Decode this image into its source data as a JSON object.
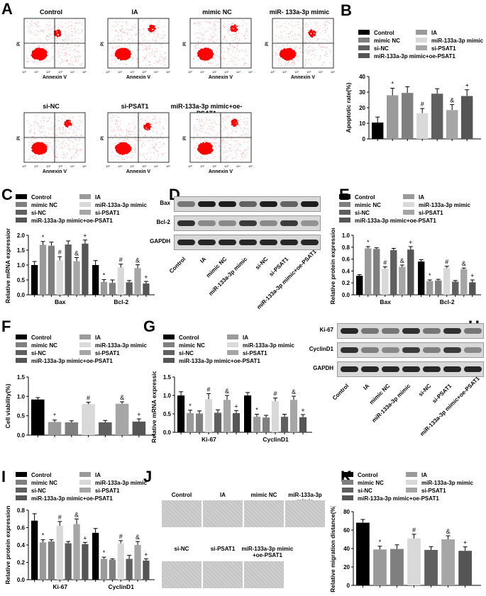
{
  "panel_labels": [
    "A",
    "B",
    "C",
    "D",
    "E",
    "F",
    "G",
    "H",
    "I",
    "J",
    "K"
  ],
  "groups": [
    "Control",
    "IA",
    "mimic NC",
    "miR-133a-3p mimic",
    "si-NC",
    "si-PSAT1",
    "miR-133a-3p mimic+oe-PSAT1"
  ],
  "group_colors": [
    "#000000",
    "#9a9a9a",
    "#7f7f7f",
    "#d9d9d9",
    "#5f5f5f",
    "#a6a6a6",
    "#555555"
  ],
  "sig_marks": [
    "",
    "*",
    "",
    "#",
    "",
    "&",
    "+"
  ],
  "flow": {
    "titles": [
      "Control",
      "IA",
      "mimic NC",
      "miR- 133a-3p mimic",
      "si-NC",
      "si-PSAT1",
      "miR-133a-3p mimic+oe-PSAT1"
    ],
    "xlabel": "Annexin V",
    "ylabel": "PI",
    "ticks": [
      "10⁰",
      "10¹",
      "10²",
      "10³",
      "10⁴",
      "10⁵"
    ],
    "dot_color": "#ff0000"
  },
  "blot_D": {
    "rows": [
      "Bax",
      "Bcl-2",
      "GAPDH"
    ],
    "lanes": [
      "Control",
      "IA",
      "mimic NC",
      "miR-133a-3p mimic",
      "si-NC",
      "si-PSAT1",
      "miR-133a-3p mimic+oe-PSAT1"
    ]
  },
  "blot_H": {
    "rows": [
      "Ki-67",
      "CyclinD1",
      "GAPDH"
    ],
    "lanes": [
      "Control",
      "IA",
      "mimic NC",
      "miR-133a-3p mimic",
      "si-NC",
      "si-PSAT1",
      "miR-133a-3p mimic+oe-PSAT1"
    ]
  },
  "wound_J": {
    "labels": [
      "Control",
      "IA",
      "mimic NC",
      "miR-133a-3p mimic",
      "si-NC",
      "si-PSAT1",
      "miR-133a-3p mimic +oe-PSAT1"
    ]
  },
  "chart_data": [
    {
      "panel": "B",
      "type": "bar",
      "ylabel": "Apoptotic rate(%)",
      "ylim": [
        0,
        40
      ],
      "yticks": [
        "0",
        "10",
        "20",
        "30",
        "40"
      ],
      "categories": [
        ""
      ],
      "series_values": [
        [
          10.5
        ],
        [
          28
        ],
        [
          29.5
        ],
        [
          16.5
        ],
        [
          29
        ],
        [
          18.5
        ],
        [
          27.5
        ]
      ],
      "errors": [
        [
          3.5
        ],
        [
          4.5
        ],
        [
          4
        ],
        [
          3
        ],
        [
          3.2
        ],
        [
          3.5
        ],
        [
          4
        ]
      ]
    },
    {
      "panel": "C",
      "type": "bar",
      "ylabel": "Relative mRNA expression",
      "ylim": [
        0,
        2
      ],
      "yticks": [
        "0.0",
        "0.5",
        "1.0",
        "1.5",
        "2.0"
      ],
      "categories": [
        "Bax",
        "Bcl-2"
      ],
      "series_values": [
        [
          1.0,
          1.0
        ],
        [
          1.68,
          0.43
        ],
        [
          1.65,
          0.4
        ],
        [
          1.16,
          0.92
        ],
        [
          1.69,
          0.42
        ],
        [
          1.13,
          0.9
        ],
        [
          1.72,
          0.38
        ]
      ],
      "errors": [
        [
          0.12,
          0.15
        ],
        [
          0.11,
          0.08
        ],
        [
          0.12,
          0.1
        ],
        [
          0.12,
          0.11
        ],
        [
          0.12,
          0.06
        ],
        [
          0.12,
          0.11
        ],
        [
          0.12,
          0.07
        ]
      ]
    },
    {
      "panel": "E",
      "type": "bar",
      "ylabel": "Relative protein expression",
      "ylim": [
        0,
        1
      ],
      "yticks": [
        "0.0",
        "0.2",
        "0.4",
        "0.6",
        "0.8",
        "1.0"
      ],
      "categories": [
        "Bax",
        "Bcl-2"
      ],
      "series_values": [
        [
          0.32,
          0.56
        ],
        [
          0.78,
          0.23
        ],
        [
          0.77,
          0.24
        ],
        [
          0.44,
          0.45
        ],
        [
          0.75,
          0.22
        ],
        [
          0.47,
          0.43
        ],
        [
          0.76,
          0.21
        ]
      ],
      "errors": [
        [
          0.02,
          0.03
        ],
        [
          0.03,
          0.02
        ],
        [
          0.02,
          0.02
        ],
        [
          0.03,
          0.03
        ],
        [
          0.03,
          0.02
        ],
        [
          0.03,
          0.02
        ],
        [
          0.05,
          0.04
        ]
      ]
    },
    {
      "panel": "F",
      "type": "bar",
      "ylabel": "Cell viability(%)",
      "ylim": [
        0,
        1.5
      ],
      "yticks": [
        "0.0",
        "0.5",
        "1.0",
        "1.5"
      ],
      "categories": [
        ""
      ],
      "series_values": [
        [
          0.92
        ],
        [
          0.34
        ],
        [
          0.33
        ],
        [
          0.8
        ],
        [
          0.33
        ],
        [
          0.81
        ],
        [
          0.35
        ]
      ],
      "errors": [
        [
          0.05
        ],
        [
          0.05
        ],
        [
          0.04
        ],
        [
          0.05
        ],
        [
          0.05
        ],
        [
          0.05
        ],
        [
          0.07
        ]
      ]
    },
    {
      "panel": "G",
      "type": "bar",
      "ylabel": "Relative mRNA expression",
      "ylim": [
        0,
        1.5
      ],
      "yticks": [
        "0.0",
        "0.5",
        "1.0",
        "1.5"
      ],
      "categories": [
        "Ki-67",
        "CyclinD1"
      ],
      "series_values": [
        [
          1.0,
          1.0
        ],
        [
          0.52,
          0.42
        ],
        [
          0.51,
          0.4
        ],
        [
          0.9,
          0.85
        ],
        [
          0.53,
          0.42
        ],
        [
          0.88,
          0.88
        ],
        [
          0.52,
          0.41
        ]
      ],
      "errors": [
        [
          0.1,
          0.08
        ],
        [
          0.08,
          0.07
        ],
        [
          0.07,
          0.06
        ],
        [
          0.15,
          0.08
        ],
        [
          0.08,
          0.07
        ],
        [
          0.12,
          0.1
        ],
        [
          0.07,
          0.07
        ]
      ]
    },
    {
      "panel": "I",
      "type": "bar",
      "ylabel": "Relative protein expression",
      "ylim": [
        0,
        0.8
      ],
      "yticks": [
        "0.0",
        "0.2",
        "0.4",
        "0.6",
        "0.8"
      ],
      "categories": [
        "Ki-67",
        "CyclinD1"
      ],
      "series_values": [
        [
          0.68,
          0.54
        ],
        [
          0.43,
          0.24
        ],
        [
          0.44,
          0.23
        ],
        [
          0.62,
          0.42
        ],
        [
          0.42,
          0.24
        ],
        [
          0.64,
          0.4
        ],
        [
          0.41,
          0.22
        ]
      ],
      "errors": [
        [
          0.08,
          0.05
        ],
        [
          0.03,
          0.02
        ],
        [
          0.02,
          0.01
        ],
        [
          0.05,
          0.03
        ],
        [
          0.02,
          0.04
        ],
        [
          0.06,
          0.04
        ],
        [
          0.02,
          0.02
        ]
      ]
    },
    {
      "panel": "K",
      "type": "bar",
      "ylabel": "Relative migration distance(%)",
      "ylim": [
        0,
        80
      ],
      "yticks": [
        "0",
        "20",
        "40",
        "60",
        "80"
      ],
      "categories": [
        ""
      ],
      "series_values": [
        [
          68
        ],
        [
          39
        ],
        [
          39.5
        ],
        [
          51
        ],
        [
          38.5
        ],
        [
          50
        ],
        [
          37.5
        ]
      ],
      "errors": [
        [
          3.5
        ],
        [
          3.5
        ],
        [
          4.5
        ],
        [
          4.5
        ],
        [
          3.5
        ],
        [
          3.8
        ],
        [
          4.3
        ]
      ]
    }
  ]
}
